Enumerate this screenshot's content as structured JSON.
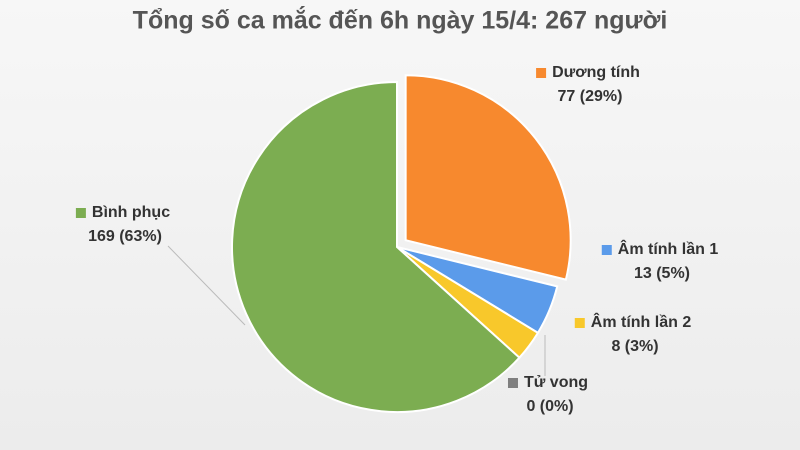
{
  "chart_data": {
    "type": "pie",
    "title": "Tổng số ca mắc đến 6h ngày 15/4: 267 người",
    "categories": [
      "Dương tính",
      "Âm tính lần 1",
      "Âm tính lần 2",
      "Tử vong",
      "Bình phục"
    ],
    "values": [
      77,
      13,
      8,
      0,
      169
    ],
    "value_labels": [
      "77 (29%)",
      "13 (5%)",
      "8 (3%)",
      "0 (0%)",
      "169 (63%)"
    ],
    "colors": [
      "#f7892e",
      "#5b9bea",
      "#f8c82b",
      "#7f7f7f",
      "#7cad51"
    ]
  }
}
